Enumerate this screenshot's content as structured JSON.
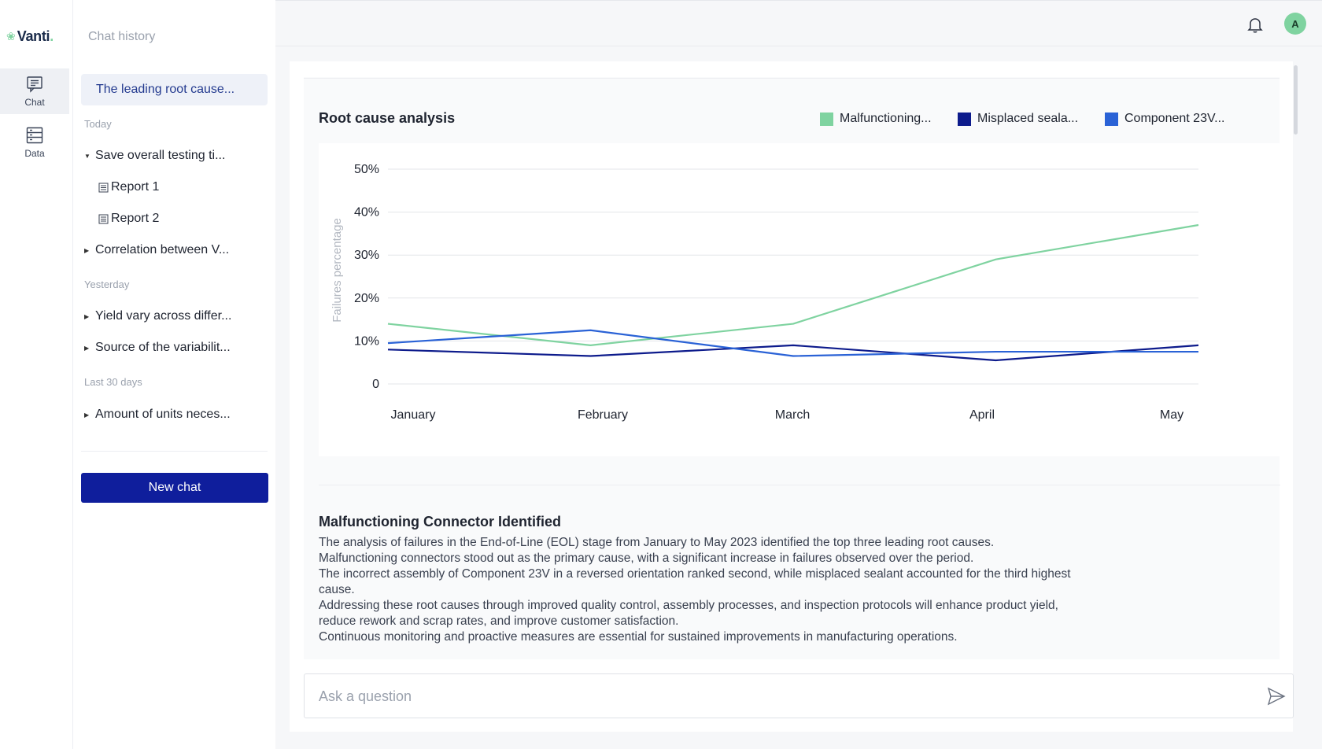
{
  "app": {
    "logo_text": "Vanti",
    "logo_dot": "."
  },
  "rail": {
    "items": [
      {
        "label": "Chat",
        "icon": "chat-icon",
        "active": true
      },
      {
        "label": "Data",
        "icon": "data-icon",
        "active": false
      }
    ]
  },
  "history": {
    "title": "Chat history",
    "active_item": "The leading root cause...",
    "sections": {
      "today": "Today",
      "yesterday": "Yesterday",
      "last30": "Last 30 days"
    },
    "today_items": [
      {
        "label": "Save overall testing ti...",
        "expanded": true,
        "children": [
          "Report 1",
          "Report 2"
        ]
      },
      {
        "label": "Correlation between V...",
        "expanded": false
      }
    ],
    "yesterday_items": [
      {
        "label": "Yield vary across differ..."
      },
      {
        "label": "Source of the variabilit..."
      }
    ],
    "last30_items": [
      {
        "label": "Amount of units neces..."
      }
    ],
    "new_chat_label": "New chat"
  },
  "header": {
    "avatar_initial": "A"
  },
  "chart": {
    "title": "Root cause analysis"
  },
  "chart_data": {
    "type": "line",
    "title": "Root cause analysis",
    "ylabel": "Failures percentage",
    "xlabel": "",
    "categories": [
      "January",
      "February",
      "March",
      "April",
      "May"
    ],
    "y_ticks": [
      "0",
      "10%",
      "20%",
      "30%",
      "40%",
      "50%"
    ],
    "ylim": [
      0,
      50
    ],
    "grid": true,
    "legend_position": "top-right",
    "series": [
      {
        "name": "Malfunctioning...",
        "color": "#7fd3a0",
        "values": [
          14,
          9,
          14,
          29,
          37
        ]
      },
      {
        "name": "Misplaced seala...",
        "color": "#0d1b8c",
        "values": [
          8,
          6.5,
          9,
          5.5,
          9
        ]
      },
      {
        "name": "Component 23V...",
        "color": "#2a62d6",
        "values": [
          9.5,
          12.5,
          6.5,
          7.5,
          7.5
        ]
      }
    ]
  },
  "summary": {
    "title": "Malfunctioning Connector Identified",
    "lines": [
      "The analysis of failures in the End-of-Line (EOL) stage from January to May 2023 identified the top three leading root causes.",
      "Malfunctioning connectors stood out as the primary cause, with a significant increase in failures observed over the period.",
      "The incorrect assembly of Component 23V in a reversed orientation ranked second, while misplaced sealant accounted for the third highest cause.",
      "Addressing these root causes through improved quality control, assembly processes, and inspection protocols will enhance product yield, reduce rework and scrap rates, and improve customer satisfaction.",
      "Continuous monitoring and proactive measures are essential for sustained improvements in manufacturing operations."
    ]
  },
  "input": {
    "placeholder": "Ask a question",
    "value": ""
  }
}
